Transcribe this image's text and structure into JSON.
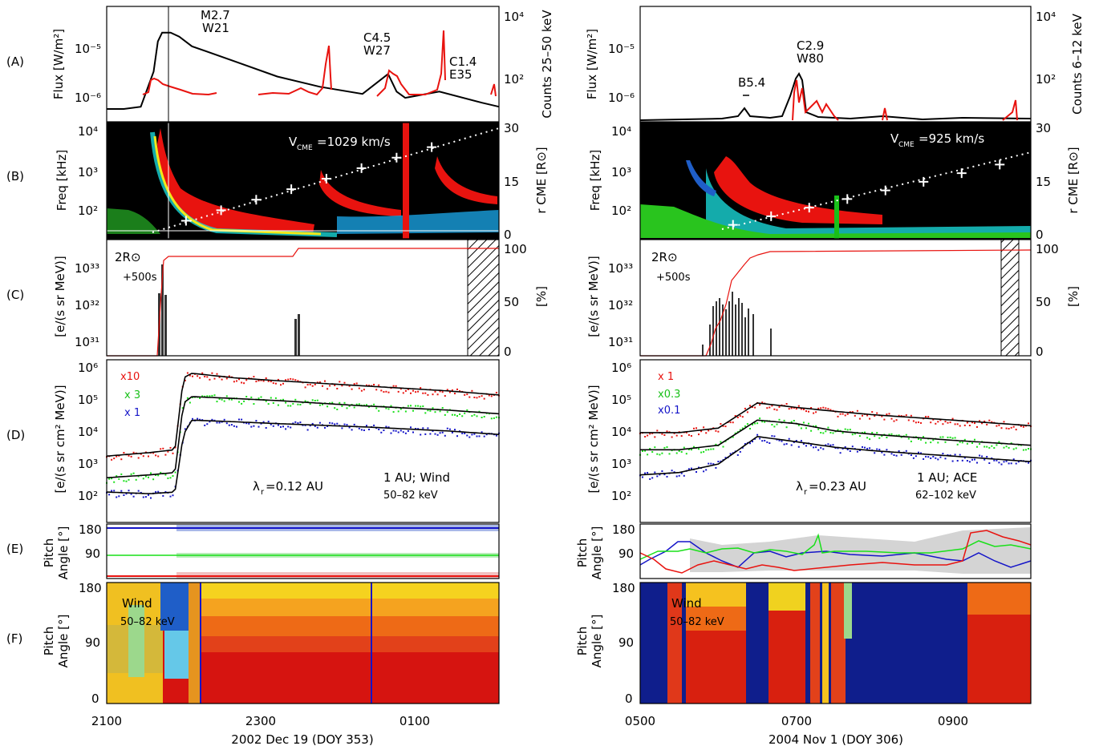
{
  "panel_letters": [
    "(A)",
    "(B)",
    "(C)",
    "(D)",
    "(E)",
    "(F)"
  ],
  "colors": {
    "red": "#e8130f",
    "green": "#19e019",
    "blue": "#1414c8",
    "black": "#000000",
    "shade_blue": "#a9b8e8",
    "shade_grey": "#d4d4d4"
  },
  "left": {
    "x_ticks": [
      "2100",
      "2300",
      "0100"
    ],
    "x_title": "2002 Dec 19 (DOY 353)",
    "A": {
      "ylabel": "Flux [W/m²]",
      "ylabel_right": "Counts 25–50 keV",
      "yticks": [
        "10⁻⁵",
        "10⁻⁶"
      ],
      "yticks_right": [
        "10⁴",
        "10²"
      ],
      "flares": [
        {
          "name": "M2.7",
          "loc": "W21"
        },
        {
          "name": "C4.5",
          "loc": "W27"
        },
        {
          "name": "C1.4",
          "loc": "E35"
        }
      ]
    },
    "B": {
      "ylabel": "Freq [kHz]",
      "ylabel_right": "r CME [R⊙]",
      "yticks": [
        "10⁴",
        "10³",
        "10²"
      ],
      "yticks_right": [
        "30",
        "15",
        "0"
      ],
      "vcme": "V",
      "vcme_sub": "CME",
      "vcme_value": "=1029 km/s"
    },
    "C": {
      "ylabel": "[e/(s sr MeV)]",
      "ylabel_right": "[%]",
      "yticks": [
        "10³³",
        "10³²",
        "10³¹"
      ],
      "yticks_right": [
        "100",
        "50",
        "0"
      ],
      "note1": "2R⊙",
      "note2": "+500s"
    },
    "D": {
      "ylabel": "[e/(s sr cm² MeV)]",
      "yticks": [
        "10⁶",
        "10⁵",
        "10⁴",
        "10³",
        "10²"
      ],
      "scales": [
        "x10",
        "x 3",
        "x 1"
      ],
      "lambda_sym": "λ",
      "lambda_sub": "r",
      "lambda_value": "=0.12 AU",
      "source": "1 AU; Wind",
      "energy": "50–82 keV"
    },
    "E": {
      "ylabel1": "Pitch",
      "ylabel2": "Angle [°]",
      "yticks": [
        "180",
        "90",
        "0"
      ]
    },
    "F": {
      "ylabel1": "Pitch",
      "ylabel2": "Angle [°]",
      "yticks": [
        "180",
        "90",
        "0"
      ],
      "label1": "Wind",
      "label2": "50–82 keV"
    }
  },
  "right": {
    "x_ticks": [
      "0500",
      "0700",
      "0900"
    ],
    "x_title": "2004 Nov 1 (DOY 306)",
    "A": {
      "ylabel": "Flux [W/m²]",
      "ylabel_right": "Counts 6–12 keV",
      "yticks": [
        "10⁻⁵",
        "10⁻⁶"
      ],
      "yticks_right": [
        "10⁴",
        "10²"
      ],
      "flares": [
        {
          "name": "B5.4",
          "loc": ""
        },
        {
          "name": "C2.9",
          "loc": "W80"
        }
      ]
    },
    "B": {
      "ylabel": "Freq [kHz]",
      "ylabel_right": "r CME [R⊙]",
      "yticks": [
        "10⁴",
        "10³",
        "10²"
      ],
      "yticks_right": [
        "30",
        "15",
        "0"
      ],
      "vcme": "V",
      "vcme_sub": "CME",
      "vcme_value": "=925 km/s"
    },
    "C": {
      "ylabel": "[e/(s sr MeV)]",
      "ylabel_right": "[%]",
      "yticks": [
        "10³³",
        "10³²",
        "10³¹"
      ],
      "yticks_right": [
        "100",
        "50",
        "0"
      ],
      "note1": "2R⊙",
      "note2": "+500s"
    },
    "D": {
      "ylabel": "[e/(s sr cm² MeV)]",
      "yticks": [
        "10⁶",
        "10⁵",
        "10⁴",
        "10³",
        "10²"
      ],
      "scales": [
        "x 1",
        "x0.3",
        "x0.1"
      ],
      "lambda_sym": "λ",
      "lambda_sub": "r",
      "lambda_value": "=0.23 AU",
      "source": "1 AU; ACE",
      "energy": "62–102 keV"
    },
    "E": {
      "ylabel1": "Pitch",
      "ylabel2": "Angle [°]",
      "yticks": [
        "180",
        "90",
        "0"
      ]
    },
    "F": {
      "ylabel1": "Pitch",
      "ylabel2": "Angle [°]",
      "yticks": [
        "180",
        "90",
        "0"
      ],
      "label1": "Wind",
      "label2": "50–82 keV"
    }
  },
  "chart_data": [
    {
      "type": "line",
      "panel": "left-A",
      "x": [
        21.0,
        21.2,
        21.4,
        21.55,
        21.6,
        21.65,
        21.75,
        21.85,
        22.0,
        22.5,
        23.0,
        23.5,
        24.0,
        24.3,
        24.4,
        24.5,
        24.9,
        25.4,
        25.6
      ],
      "series": [
        {
          "values": [
            9e-07,
            9e-07,
            1e-06,
            5e-06,
            2e-05,
            3e-05,
            3e-05,
            2.5e-05,
            1.6e-05,
            8e-06,
            4e-06,
            2.5e-06,
            1.8e-06,
            4.5e-06,
            2e-06,
            1.5e-06,
            2e-06,
            1.2e-06,
            1e-06
          ]
        }
      ],
      "ylim": [
        5e-07,
        0.0001
      ],
      "scale": "log"
    },
    {
      "type": "line",
      "panel": "left-D",
      "x": [
        21.0,
        21.5,
        21.8,
        21.9,
        22.0,
        22.5,
        23.0,
        24.0,
        25.0,
        25.6
      ],
      "series": [
        {
          "name": "x10",
          "values": [
            2000,
            2500,
            3000,
            300000,
            400000,
            300000,
            250000,
            180000,
            130000,
            100000
          ]
        },
        {
          "name": "x 3",
          "values": [
            500,
            600,
            700,
            60000,
            90000,
            80000,
            70000,
            50000,
            38000,
            30000
          ]
        },
        {
          "name": "x 1",
          "values": [
            200,
            180,
            200,
            8000,
            20000,
            18000,
            16000,
            13000,
            10000,
            8000
          ]
        }
      ],
      "ylim": [
        30,
        1000000
      ],
      "scale": "log"
    },
    {
      "type": "line",
      "panel": "right-D",
      "x": [
        5.0,
        5.5,
        6.0,
        6.5,
        7.0,
        7.5,
        8.0,
        9.0,
        10.0
      ],
      "series": [
        {
          "name": "x 1",
          "values": [
            9000,
            9000,
            12000,
            60000,
            45000,
            35000,
            28000,
            20000,
            14000
          ]
        },
        {
          "name": "x0.3",
          "values": [
            3000,
            3000,
            4000,
            20000,
            16000,
            10000,
            8000,
            5500,
            4000
          ]
        },
        {
          "name": "x0.1",
          "values": [
            600,
            700,
            1200,
            7000,
            5000,
            3500,
            2800,
            2000,
            1400
          ]
        }
      ],
      "ylim": [
        30,
        1000000
      ],
      "scale": "log"
    }
  ]
}
